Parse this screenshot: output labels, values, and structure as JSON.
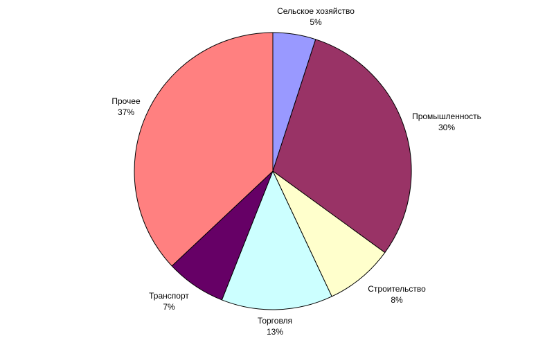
{
  "chart_data": {
    "type": "pie",
    "slices": [
      {
        "label": "Сельское хозяйство",
        "value": 5,
        "value_text": "5%",
        "color": "#9999ff"
      },
      {
        "label": "Промышленность",
        "value": 30,
        "value_text": "30%",
        "color": "#993366"
      },
      {
        "label": "Строительство",
        "value": 8,
        "value_text": "8%",
        "color": "#ffffcc"
      },
      {
        "label": "Торговля",
        "value": 13,
        "value_text": "13%",
        "color": "#ccffff"
      },
      {
        "label": "Транспорт",
        "value": 7,
        "value_text": "7%",
        "color": "#660066"
      },
      {
        "label": "Прочее",
        "value": 37,
        "value_text": "37%",
        "color": "#ff8080"
      }
    ],
    "start": "12 o'clock",
    "direction": "clockwise",
    "legend": "none"
  }
}
